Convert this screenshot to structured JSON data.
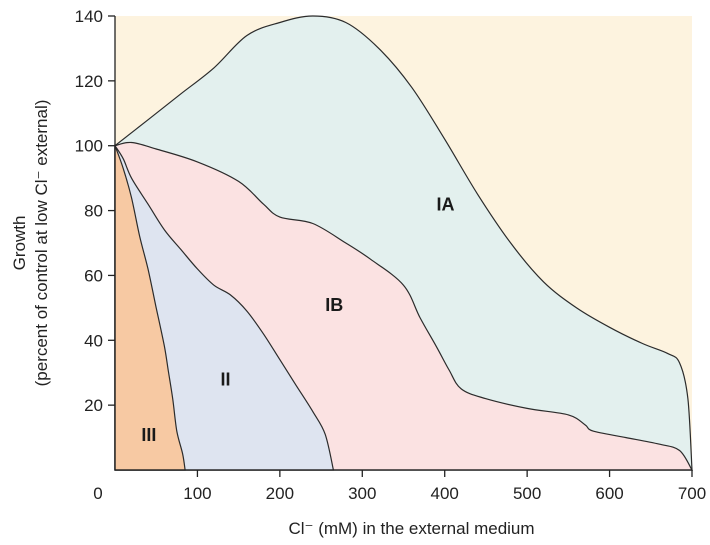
{
  "chart_data": {
    "type": "area",
    "xlabel": "Cl⁻ (mM) in the external medium",
    "ylabel_line1": "Growth",
    "ylabel_line2": "(percent of control at low Cl⁻ external)",
    "xlim": [
      0,
      700
    ],
    "ylim": [
      0,
      140
    ],
    "x_ticks": [
      0,
      100,
      200,
      300,
      400,
      500,
      600,
      700
    ],
    "y_ticks": [
      20,
      40,
      60,
      80,
      100,
      120,
      140
    ],
    "grid": false,
    "background_color": "#fdf3df",
    "regions": [
      {
        "name": "IA",
        "color": "#e3f0ee",
        "label_at": [
          390,
          80
        ],
        "upper": [
          [
            0,
            100
          ],
          [
            40,
            108
          ],
          [
            80,
            116
          ],
          [
            120,
            124
          ],
          [
            160,
            134
          ],
          [
            200,
            138
          ],
          [
            240,
            140
          ],
          [
            280,
            138
          ],
          [
            320,
            130
          ],
          [
            360,
            118
          ],
          [
            400,
            102
          ],
          [
            440,
            85
          ],
          [
            480,
            70
          ],
          [
            520,
            58
          ],
          [
            560,
            50
          ],
          [
            600,
            44
          ],
          [
            640,
            39
          ],
          [
            670,
            36
          ],
          [
            685,
            33
          ],
          [
            695,
            22
          ],
          [
            700,
            0
          ]
        ]
      },
      {
        "name": "IB",
        "color": "#fbe2e2",
        "label_at": [
          255,
          49
        ],
        "upper": [
          [
            0,
            100
          ],
          [
            20,
            101
          ],
          [
            50,
            99
          ],
          [
            100,
            95
          ],
          [
            150,
            89
          ],
          [
            180,
            82
          ],
          [
            200,
            78
          ],
          [
            240,
            76
          ],
          [
            280,
            70
          ],
          [
            310,
            65
          ],
          [
            350,
            57
          ],
          [
            370,
            47
          ],
          [
            390,
            38
          ],
          [
            405,
            31
          ],
          [
            420,
            25
          ],
          [
            450,
            22
          ],
          [
            500,
            19
          ],
          [
            550,
            17
          ],
          [
            570,
            14
          ],
          [
            580,
            12
          ],
          [
            620,
            10
          ],
          [
            660,
            8
          ],
          [
            685,
            6
          ],
          [
            700,
            0
          ]
        ]
      },
      {
        "name": "II",
        "color": "#dee4f0",
        "label_at": [
          128,
          26
        ],
        "upper": [
          [
            0,
            100
          ],
          [
            10,
            96
          ],
          [
            20,
            90
          ],
          [
            40,
            82
          ],
          [
            60,
            74
          ],
          [
            80,
            68
          ],
          [
            100,
            62
          ],
          [
            120,
            57
          ],
          [
            140,
            54
          ],
          [
            160,
            49
          ],
          [
            180,
            42
          ],
          [
            200,
            34
          ],
          [
            220,
            26
          ],
          [
            240,
            18
          ],
          [
            255,
            11
          ],
          [
            265,
            0
          ]
        ]
      },
      {
        "name": "III",
        "color": "#f7c9a3",
        "label_at": [
          32,
          9
        ],
        "upper": [
          [
            0,
            100
          ],
          [
            10,
            93
          ],
          [
            20,
            84
          ],
          [
            30,
            72
          ],
          [
            40,
            62
          ],
          [
            50,
            50
          ],
          [
            60,
            38
          ],
          [
            65,
            30
          ],
          [
            70,
            22
          ],
          [
            75,
            12
          ],
          [
            82,
            5
          ],
          [
            85,
            0
          ]
        ]
      }
    ]
  }
}
